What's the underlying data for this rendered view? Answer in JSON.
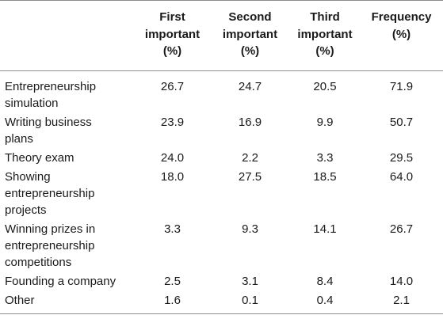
{
  "table": {
    "headers": [
      {
        "lines": [
          ""
        ]
      },
      {
        "lines": [
          "First",
          "important",
          "(%)"
        ]
      },
      {
        "lines": [
          "Second",
          "important",
          "(%)"
        ]
      },
      {
        "lines": [
          "Third",
          "important",
          "(%)"
        ]
      },
      {
        "lines": [
          "Frequency",
          "(%)"
        ]
      }
    ],
    "rows": [
      {
        "label_lines": [
          "Entrepreneurship",
          "simulation"
        ],
        "values": [
          "26.7",
          "24.7",
          "20.5",
          "71.9"
        ]
      },
      {
        "label_lines": [
          "Writing business",
          "plans"
        ],
        "values": [
          "23.9",
          "16.9",
          "9.9",
          "50.7"
        ]
      },
      {
        "label_lines": [
          "Theory exam"
        ],
        "values": [
          "24.0",
          "2.2",
          "3.3",
          "29.5"
        ]
      },
      {
        "label_lines": [
          "Showing",
          "entrepreneurship",
          "projects"
        ],
        "values": [
          "18.0",
          "27.5",
          "18.5",
          "64.0"
        ]
      },
      {
        "label_lines": [
          "Winning prizes in",
          "entrepreneurship",
          "competitions"
        ],
        "values": [
          "3.3",
          "9.3",
          "14.1",
          "26.7"
        ]
      },
      {
        "label_lines": [
          "Founding a company"
        ],
        "values": [
          "2.5",
          "3.1",
          "8.4",
          "14.0"
        ]
      },
      {
        "label_lines": [
          "Other"
        ],
        "values": [
          "1.6",
          "0.1",
          "0.4",
          "2.1"
        ]
      }
    ]
  }
}
